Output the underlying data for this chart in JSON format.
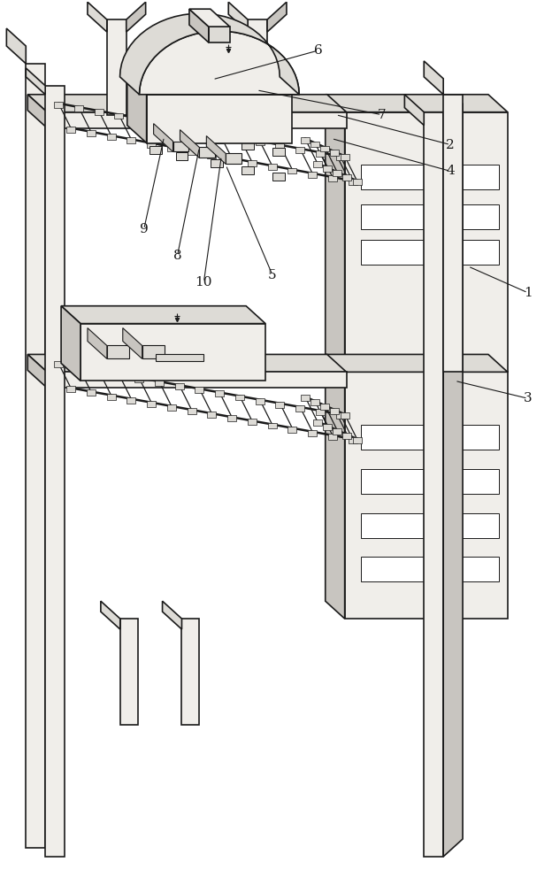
{
  "background_color": "#ffffff",
  "line_color": "#1a1a1a",
  "fill_white": "#ffffff",
  "fill_light": "#f0eeea",
  "fill_medium": "#dddbd6",
  "fill_dark": "#c8c5c0",
  "fill_darker": "#b8b5b0",
  "labels": [
    "1",
    "2",
    "3",
    "4",
    "5",
    "6",
    "7",
    "8",
    "9",
    "10"
  ],
  "label_fontsize": 11
}
